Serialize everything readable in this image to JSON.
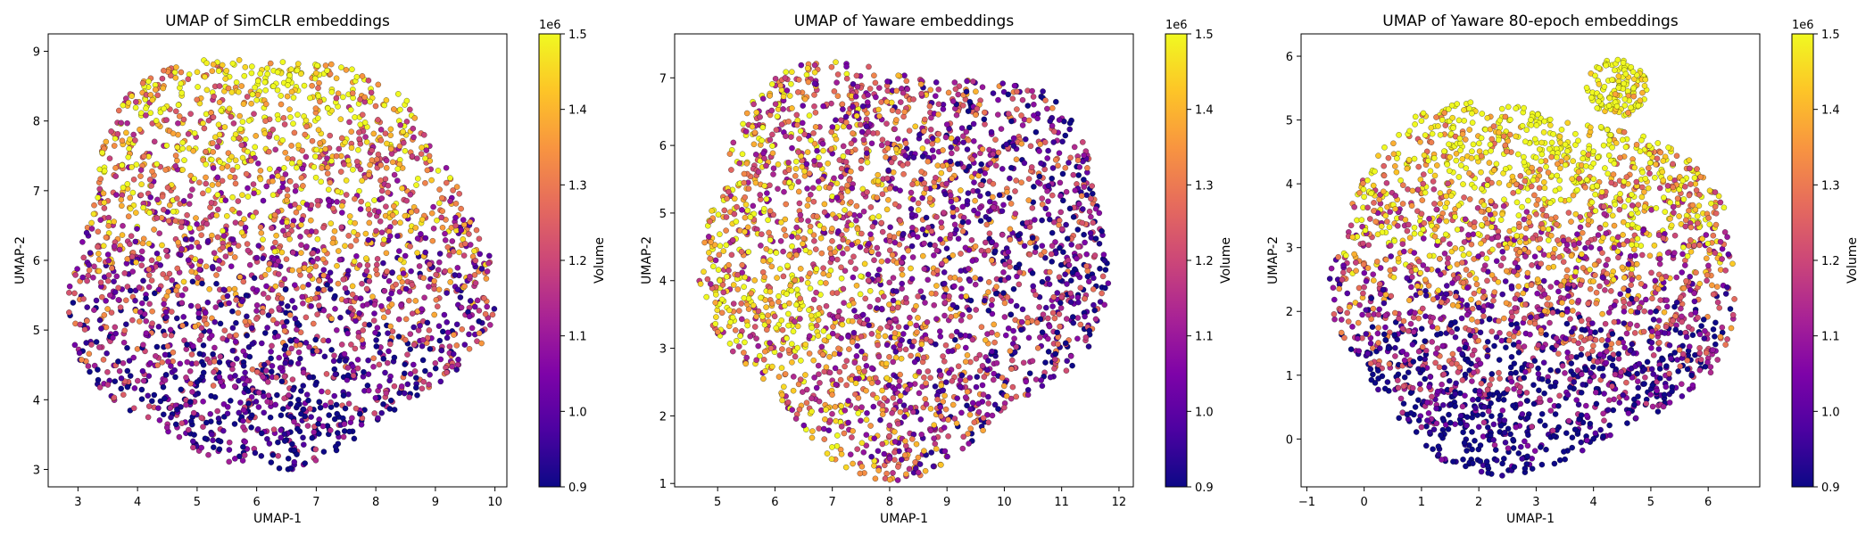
{
  "figure": {
    "background": "#ffffff"
  },
  "chart_data": [
    {
      "type": "scatter",
      "title": "UMAP of SimCLR embeddings",
      "xlabel": "UMAP-1",
      "ylabel": "UMAP-2",
      "xlim": [
        2.5,
        10.2
      ],
      "ylim": [
        2.75,
        9.25
      ],
      "xticks": [
        3,
        4,
        5,
        6,
        7,
        8,
        9,
        10
      ],
      "yticks": [
        3,
        4,
        5,
        6,
        7,
        8,
        9
      ],
      "grid": false,
      "colorbar": {
        "label": "Volume",
        "offset_text": "1e6",
        "range": [
          0.9,
          1.5
        ],
        "ticks": [
          0.9,
          1.0,
          1.1,
          1.2,
          1.3,
          1.4,
          1.5
        ],
        "colormap": "plasma"
      },
      "points": {
        "count": 2600,
        "seed": 11,
        "shape": "blob",
        "center": [
          6.3,
          6.0
        ],
        "radius": [
          3.5,
          2.95
        ],
        "bumps": [
          0.04,
          2.1,
          0.05,
          1.3
        ],
        "value_range": [
          0.9,
          1.5
        ],
        "gradient": [
          0.0,
          0.12,
          0.0
        ],
        "hot": [
          6.5,
          8.5,
          0.6,
          0.15
        ]
      }
    },
    {
      "type": "scatter",
      "title": "UMAP of Yaware embeddings",
      "xlabel": "UMAP-1",
      "ylabel": "UMAP-2",
      "xlim": [
        4.25,
        12.25
      ],
      "ylim": [
        0.95,
        7.65
      ],
      "xticks": [
        5,
        6,
        7,
        8,
        9,
        10,
        11,
        12
      ],
      "yticks": [
        1,
        2,
        3,
        4,
        5,
        6,
        7
      ],
      "grid": false,
      "colorbar": {
        "label": "Volume",
        "offset_text": "1e6",
        "range": [
          0.9,
          1.5
        ],
        "ticks": [
          0.9,
          1.0,
          1.1,
          1.2,
          1.3,
          1.4,
          1.5
        ],
        "colormap": "plasma"
      },
      "points": {
        "count": 2600,
        "seed": 23,
        "shape": "blob",
        "center": [
          8.25,
          4.35
        ],
        "radius": [
          3.55,
          3.0
        ],
        "bumps": [
          0.05,
          0.4,
          0.06,
          2.0
        ],
        "value_range": [
          0.9,
          1.5
        ],
        "gradient": [
          -0.07,
          0.0,
          0.0
        ],
        "hot": [
          6.3,
          3.8,
          0.8,
          0.12
        ]
      }
    },
    {
      "type": "scatter",
      "title": "UMAP of Yaware 80-epoch embeddings",
      "xlabel": "UMAP-1",
      "ylabel": "UMAP-2",
      "xlim": [
        -1.1,
        6.9
      ],
      "ylim": [
        -0.75,
        6.35
      ],
      "xticks": [
        -1,
        0,
        1,
        2,
        3,
        4,
        5,
        6
      ],
      "yticks": [
        0,
        1,
        2,
        3,
        4,
        5,
        6
      ],
      "grid": false,
      "colorbar": {
        "label": "Volume",
        "offset_text": "1e6",
        "range": [
          0.9,
          1.5
        ],
        "ticks": [
          0.9,
          1.0,
          1.1,
          1.2,
          1.3,
          1.4,
          1.5
        ],
        "colormap": "plasma"
      },
      "points": {
        "count": 2600,
        "seed": 37,
        "shape": "blob",
        "center": [
          2.9,
          2.45
        ],
        "radius": [
          3.55,
          2.85
        ],
        "bumps": [
          0.05,
          1.0,
          0.04,
          2.6
        ],
        "value_range": [
          0.9,
          1.5
        ],
        "gradient": [
          0.0,
          0.16,
          -0.06
        ],
        "hot": [
          3.5,
          4.8,
          0.9,
          0.15
        ],
        "extra_lobe": {
          "center": [
            4.4,
            5.5
          ],
          "radius": [
            0.55,
            0.45
          ],
          "count": 130
        }
      }
    }
  ]
}
